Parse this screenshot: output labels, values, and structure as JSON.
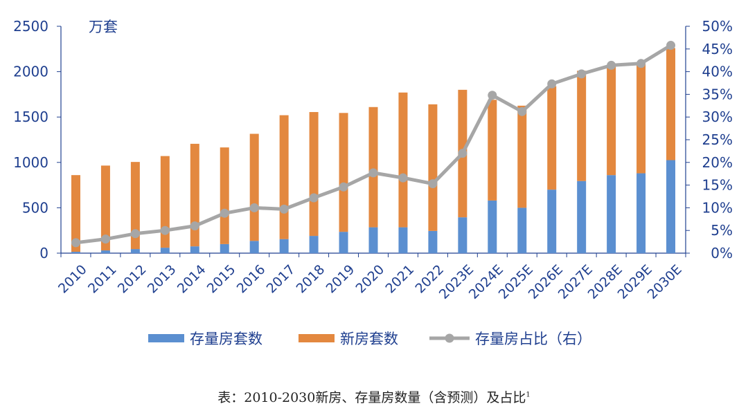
{
  "chart_data": {
    "type": "bar",
    "unit_label": "万套",
    "categories": [
      "2010",
      "2011",
      "2012",
      "2013",
      "2014",
      "2015",
      "2016",
      "2017",
      "2018",
      "2019",
      "2020",
      "2021",
      "2022",
      "2023E",
      "2024E",
      "2025E",
      "2026E",
      "2027E",
      "2028E",
      "2029E",
      "2030E"
    ],
    "series": [
      {
        "name": "存量房套数",
        "type": "bar",
        "stack": "total",
        "axis": "left",
        "color": "#5b8fd0",
        "values": [
          15,
          30,
          45,
          60,
          75,
          100,
          135,
          155,
          190,
          235,
          285,
          285,
          245,
          395,
          580,
          500,
          700,
          795,
          860,
          880,
          1025
        ]
      },
      {
        "name": "新房套数",
        "type": "bar",
        "stack": "total",
        "axis": "left",
        "color": "#e3883f",
        "values": [
          845,
          935,
          960,
          1010,
          1130,
          1065,
          1180,
          1365,
          1365,
          1310,
          1325,
          1485,
          1395,
          1405,
          1110,
          1125,
          1140,
          1215,
          1210,
          1210,
          1235
        ]
      },
      {
        "name": "存量房占比（右）",
        "type": "line",
        "axis": "right",
        "color": "#a6a6a6",
        "values": [
          2.3,
          3.1,
          4.3,
          5.0,
          6.0,
          8.8,
          10.0,
          9.7,
          12.2,
          14.6,
          17.7,
          16.6,
          15.3,
          22.0,
          34.8,
          31.2,
          37.3,
          39.5,
          41.4,
          41.8,
          45.8
        ]
      }
    ],
    "left_axis": {
      "min": 0,
      "max": 2500,
      "ticks": [
        "0",
        "500",
        "1000",
        "1500",
        "2000",
        "2500"
      ]
    },
    "right_axis": {
      "min": 0,
      "max": 50,
      "ticks": [
        "0%",
        "5%",
        "10%",
        "15%",
        "20%",
        "25%",
        "30%",
        "35%",
        "40%",
        "45%",
        "50%"
      ]
    },
    "legend_placement": "bottom",
    "grid": false
  },
  "caption": {
    "text": "表：2010-2030新房、存量房数量（含预测）及占比",
    "footnote": "1"
  }
}
